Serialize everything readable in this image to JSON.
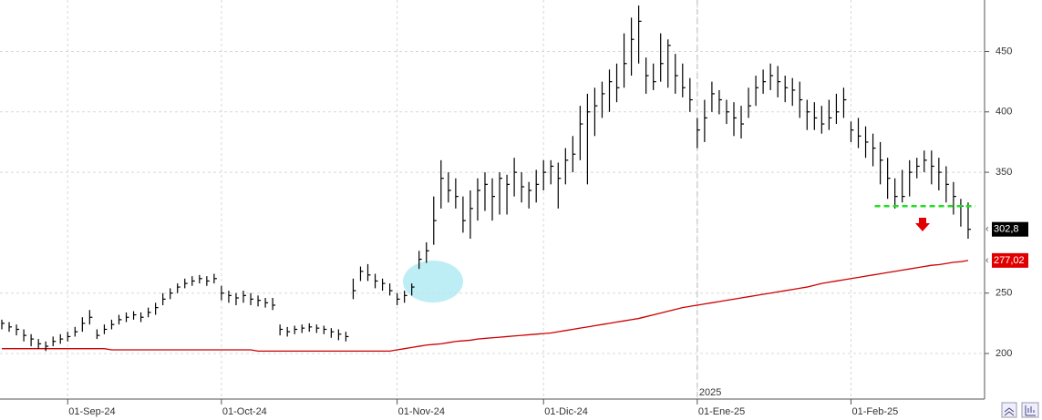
{
  "chart_data": {
    "type": "ohlc",
    "categories": [
      null,
      null,
      null,
      null,
      null,
      null,
      null,
      null,
      null,
      "01-Sep-24",
      null,
      null,
      null,
      null,
      null,
      null,
      null,
      null,
      null,
      null,
      null,
      null,
      null,
      null,
      null,
      null,
      null,
      null,
      null,
      null,
      "01-Oct-24",
      null,
      null,
      null,
      null,
      null,
      null,
      null,
      null,
      null,
      null,
      null,
      null,
      null,
      null,
      null,
      null,
      null,
      null,
      null,
      null,
      null,
      null,
      null,
      "01-Nov-24",
      null,
      null,
      null,
      null,
      null,
      null,
      null,
      null,
      null,
      null,
      null,
      null,
      null,
      null,
      null,
      null,
      null,
      null,
      null,
      "01-Dic-24",
      null,
      null,
      null,
      null,
      null,
      null,
      null,
      null,
      null,
      null,
      null,
      null,
      null,
      null,
      null,
      null,
      null,
      null,
      null,
      null,
      "01-Ene-25",
      null,
      null,
      null,
      null,
      null,
      null,
      null,
      null,
      null,
      null,
      null,
      null,
      null,
      null,
      null,
      null,
      null,
      null,
      null,
      null,
      "01-Feb-25",
      null,
      null,
      null,
      null,
      null,
      null,
      null,
      null,
      null,
      null,
      null,
      null,
      null,
      null,
      null,
      null
    ],
    "high": [
      228,
      226,
      224,
      220,
      216,
      212,
      210,
      214,
      216,
      218,
      222,
      230,
      236,
      220,
      224,
      228,
      232,
      234,
      235,
      234,
      238,
      242,
      250,
      254,
      258,
      262,
      264,
      265,
      264,
      266,
      256,
      252,
      250,
      252,
      250,
      248,
      246,
      246,
      224,
      222,
      223,
      224,
      225,
      224,
      223,
      221,
      220,
      218,
      262,
      272,
      274,
      266,
      262,
      258,
      250,
      252,
      258,
      285,
      292,
      330,
      360,
      350,
      345,
      330,
      335,
      345,
      350,
      345,
      350,
      348,
      362,
      350,
      342,
      352,
      360,
      360,
      358,
      370,
      380,
      405,
      415,
      420,
      425,
      435,
      440,
      465,
      478,
      488,
      445,
      440,
      465,
      460,
      448,
      440,
      428,
      395,
      410,
      425,
      418,
      410,
      408,
      405,
      420,
      430,
      435,
      440,
      438,
      430,
      428,
      425,
      410,
      408,
      405,
      410,
      415,
      420,
      392,
      395,
      388,
      382,
      375,
      362,
      345,
      352,
      360,
      362,
      368,
      368,
      362,
      355,
      342,
      328,
      325
    ],
    "low": [
      220,
      218,
      215,
      210,
      206,
      204,
      202,
      206,
      208,
      210,
      214,
      218,
      224,
      212,
      216,
      220,
      224,
      226,
      228,
      226,
      230,
      232,
      240,
      245,
      250,
      254,
      256,
      258,
      256,
      258,
      244,
      242,
      240,
      242,
      240,
      239,
      238,
      236,
      215,
      214,
      216,
      217,
      218,
      217,
      216,
      213,
      211,
      210,
      245,
      260,
      260,
      254,
      252,
      248,
      240,
      242,
      248,
      270,
      275,
      290,
      320,
      325,
      320,
      300,
      295,
      310,
      318,
      310,
      315,
      315,
      330,
      325,
      320,
      325,
      335,
      340,
      320,
      340,
      350,
      360,
      340,
      380,
      395,
      400,
      408,
      420,
      430,
      440,
      415,
      418,
      425,
      420,
      415,
      412,
      400,
      370,
      375,
      400,
      398,
      390,
      380,
      378,
      395,
      405,
      415,
      418,
      412,
      408,
      405,
      395,
      385,
      385,
      382,
      385,
      390,
      395,
      375,
      370,
      362,
      355,
      340,
      328,
      320,
      325,
      330,
      345,
      350,
      340,
      335,
      325,
      315,
      305,
      295
    ],
    "close": [
      225,
      222,
      220,
      215,
      212,
      208,
      206,
      210,
      212,
      214,
      218,
      225,
      230,
      215,
      220,
      224,
      228,
      230,
      232,
      230,
      234,
      238,
      245,
      250,
      255,
      258,
      260,
      262,
      260,
      262,
      250,
      248,
      246,
      248,
      245,
      244,
      242,
      240,
      220,
      218,
      220,
      221,
      222,
      221,
      220,
      218,
      216,
      214,
      252,
      268,
      265,
      260,
      258,
      252,
      245,
      248,
      255,
      278,
      285,
      310,
      345,
      335,
      330,
      310,
      320,
      335,
      340,
      330,
      345,
      340,
      350,
      338,
      335,
      340,
      350,
      355,
      345,
      360,
      365,
      390,
      400,
      405,
      415,
      425,
      420,
      440,
      460,
      475,
      430,
      425,
      440,
      455,
      430,
      420,
      410,
      385,
      395,
      415,
      410,
      400,
      395,
      390,
      405,
      420,
      425,
      430,
      425,
      420,
      418,
      410,
      400,
      395,
      390,
      395,
      400,
      410,
      385,
      380,
      375,
      370,
      360,
      345,
      330,
      330,
      350,
      355,
      360,
      355,
      350,
      340,
      330,
      322,
      302.8
    ],
    "color": "#000000",
    "close_label": "302,8",
    "moving_average": {
      "color": "#cc0000",
      "last_label": "277,02",
      "values": [
        204,
        204,
        204,
        204,
        204,
        204,
        204,
        204,
        204,
        204,
        204,
        204,
        204,
        204,
        204,
        203,
        203,
        203,
        203,
        203,
        203,
        203,
        203,
        203,
        203,
        203,
        203,
        203,
        203,
        203,
        203,
        203,
        203,
        203,
        203,
        202,
        202,
        202,
        202,
        202,
        202,
        202,
        202,
        202,
        202,
        202,
        202,
        202,
        202,
        202,
        202,
        202,
        202,
        202,
        203,
        204,
        205,
        206,
        207,
        207.5,
        208,
        209,
        210,
        210.5,
        211,
        212,
        212.5,
        213,
        213.5,
        214,
        214.5,
        215,
        215.5,
        216,
        216.5,
        217,
        218,
        219,
        220,
        221,
        222,
        223,
        224,
        225,
        226,
        227,
        228,
        229,
        230.5,
        232,
        233.5,
        235,
        236.5,
        238,
        239,
        240,
        241,
        242,
        243,
        244,
        245,
        246,
        247,
        248,
        249,
        250,
        251,
        252,
        253,
        254,
        255,
        256.5,
        258,
        259,
        260,
        261,
        262,
        263,
        264,
        265,
        266,
        267,
        268,
        269,
        270,
        271,
        272,
        273,
        273.5,
        274.5,
        275.5,
        276,
        277.02
      ]
    },
    "support_level": 322,
    "year_break": {
      "label": "2025",
      "category_index": 95
    },
    "ylim": [
      162.3,
      492.6
    ],
    "yticks": [
      200,
      250,
      350,
      400,
      450
    ],
    "grid": true
  }
}
